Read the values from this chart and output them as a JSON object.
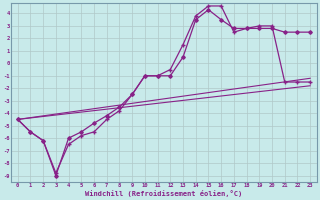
{
  "xlabel": "Windchill (Refroidissement éolien,°C)",
  "background_color": "#c8eaea",
  "grid_color": "#b0c8c8",
  "line_color": "#882288",
  "xlim_min": -0.5,
  "xlim_max": 23.5,
  "ylim_min": -9.5,
  "ylim_max": 4.8,
  "xticks": [
    0,
    1,
    2,
    3,
    4,
    5,
    6,
    7,
    8,
    9,
    10,
    11,
    12,
    13,
    14,
    15,
    16,
    17,
    18,
    19,
    20,
    21,
    22,
    23
  ],
  "yticks": [
    4,
    3,
    2,
    1,
    0,
    -1,
    -2,
    -3,
    -4,
    -5,
    -6,
    -7,
    -8,
    -9
  ],
  "series1_x": [
    0,
    1,
    2,
    3,
    4,
    5,
    6,
    7,
    8,
    9,
    10,
    11,
    12,
    13,
    14,
    15,
    16,
    17,
    18,
    19,
    20,
    21,
    22,
    23
  ],
  "series1_y": [
    -4.5,
    -5.5,
    -6.2,
    -9.0,
    -6.0,
    -5.5,
    -4.8,
    -4.2,
    -3.5,
    -2.5,
    -1.0,
    -1.0,
    -1.0,
    0.5,
    3.5,
    4.3,
    3.5,
    2.8,
    2.8,
    2.8,
    2.8,
    2.5,
    2.5,
    2.5
  ],
  "series2_x": [
    0,
    1,
    2,
    3,
    4,
    5,
    6,
    7,
    8,
    9,
    10,
    11,
    12,
    13,
    14,
    15,
    16,
    17,
    18,
    19,
    20,
    21,
    22,
    23
  ],
  "series2_y": [
    -4.5,
    -5.5,
    -6.2,
    -8.8,
    -6.5,
    -5.8,
    -5.5,
    -4.5,
    -3.8,
    -2.5,
    -1.0,
    -1.0,
    -0.5,
    1.5,
    3.8,
    4.6,
    4.6,
    2.5,
    2.8,
    3.0,
    3.0,
    -1.5,
    -1.5,
    -1.5
  ],
  "series3_x": [
    0,
    23
  ],
  "series3_y": [
    -4.5,
    -1.2
  ],
  "series4_x": [
    0,
    23
  ],
  "series4_y": [
    -4.5,
    -1.8
  ]
}
